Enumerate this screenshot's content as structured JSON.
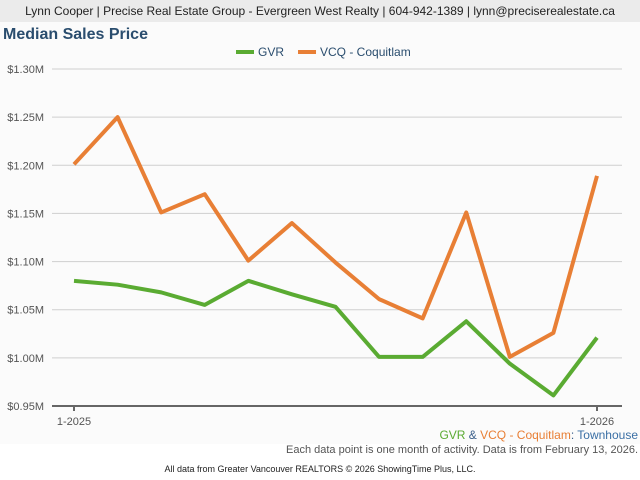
{
  "header": {
    "agent_line": "Lynn Cooper | Precise Real Estate Group - Evergreen West Realty | 604-942-1389 | lynn@preciserealestate.ca"
  },
  "chart_data": {
    "type": "line",
    "title": "Median Sales Price",
    "x": [
      "1-2025",
      "2-2025",
      "3-2025",
      "4-2025",
      "5-2025",
      "6-2025",
      "7-2025",
      "8-2025",
      "9-2025",
      "10-2025",
      "11-2025",
      "12-2025",
      "1-2026"
    ],
    "x_tick_labels": [
      "1-2025",
      "1-2026"
    ],
    "y_tick_labels": [
      "$1.30M",
      "$1.25M",
      "$1.20M",
      "$1.15M",
      "$1.10M",
      "$1.05M",
      "$1.00M",
      "$0.95M"
    ],
    "ylim": [
      0.95,
      1.3
    ],
    "y_unit": "$M",
    "legend_position": "top-center",
    "series": [
      {
        "name": "GVR",
        "color": "#5aab32",
        "values": [
          1.08,
          1.076,
          1.068,
          1.055,
          1.08,
          1.066,
          1.053,
          1.001,
          1.001,
          1.038,
          0.994,
          0.961,
          1.021
        ]
      },
      {
        "name": "VCQ - Coquitlam",
        "color": "#e87f35",
        "values": [
          1.201,
          1.25,
          1.151,
          1.17,
          1.101,
          1.14,
          1.099,
          1.061,
          1.041,
          1.151,
          1.001,
          1.026,
          1.189
        ]
      }
    ]
  },
  "subtitle": {
    "gvr": "GVR",
    "amp": " & ",
    "vcq": "VCQ - Coquitlam",
    "colon": ": ",
    "type": "Townhouse"
  },
  "note": "Each data point is one month of activity. Data is from February 13, 2026.",
  "credit": "All data from Greater Vancouver REALTORS © 2026 ShowingTime Plus, LLC."
}
